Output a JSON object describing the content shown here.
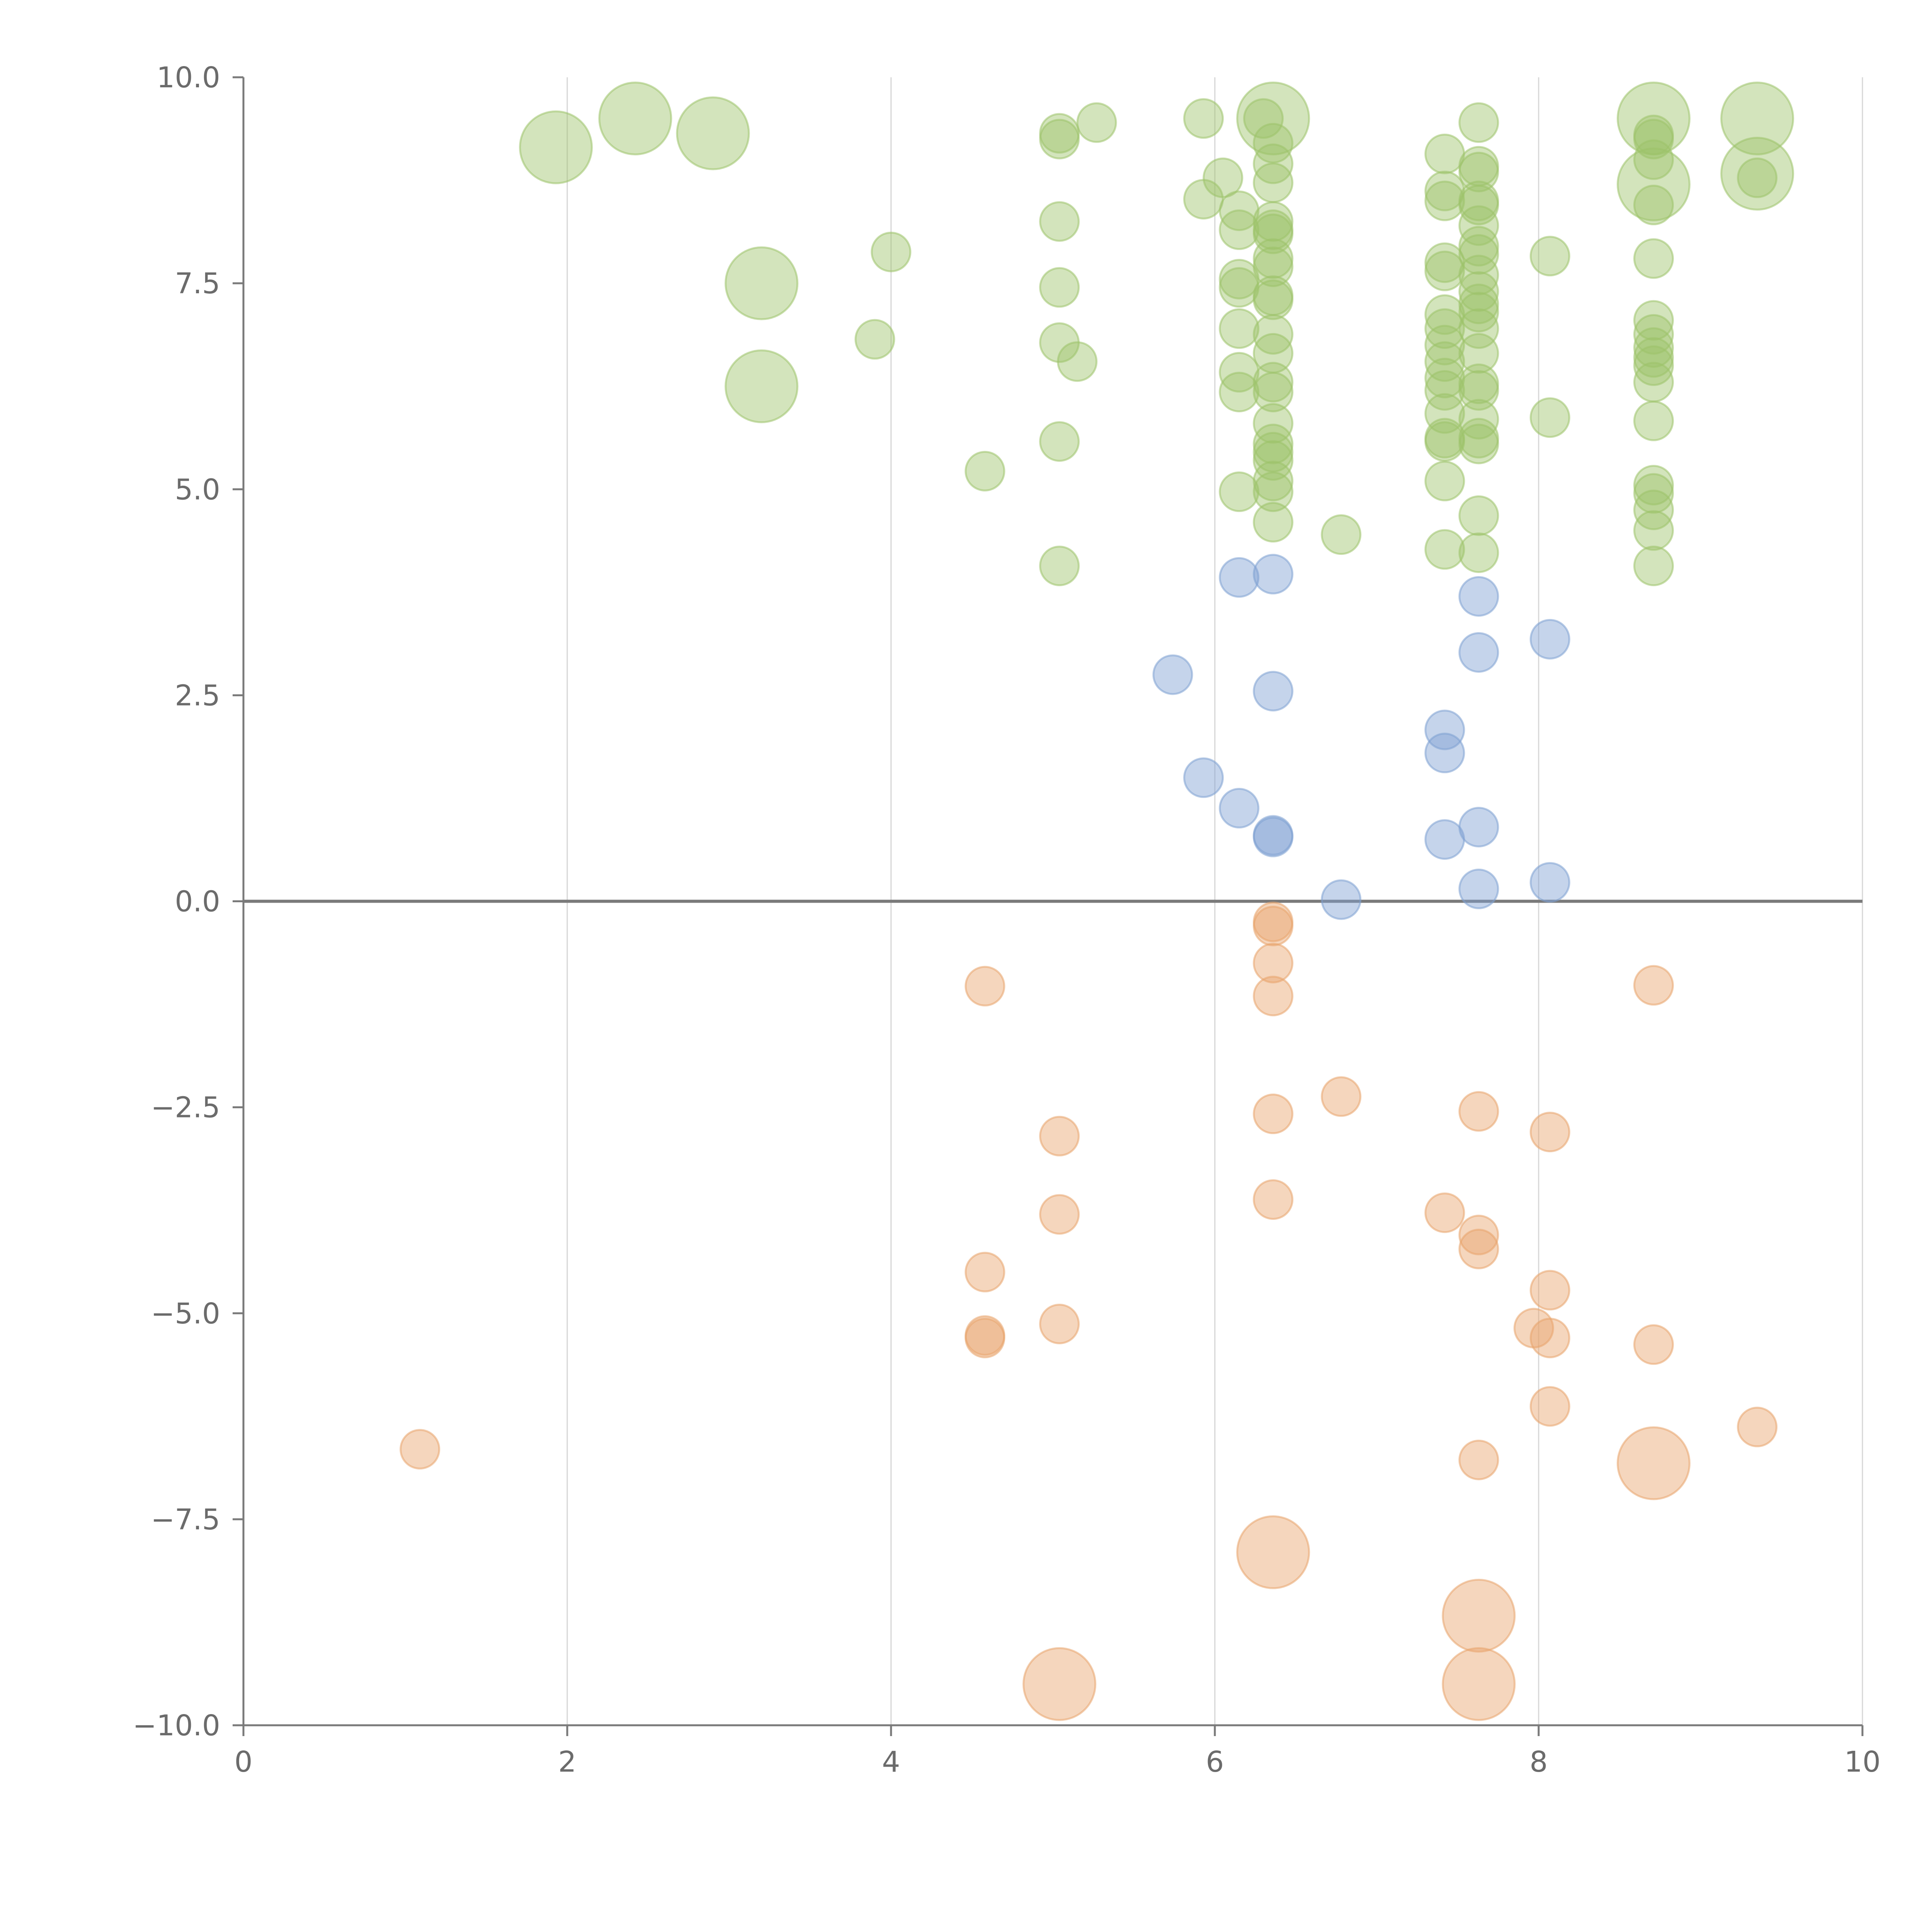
{
  "chart_data": {
    "type": "scatter",
    "xlim": [
      0,
      10
    ],
    "ylim": [
      -10,
      10
    ],
    "x_ticks": [
      "0",
      "2",
      "4",
      "6",
      "8",
      "10"
    ],
    "y_ticks": [
      "10.0",
      "7.5",
      "5.0",
      "2.5",
      "0.0",
      "−2.5",
      "−5.0",
      "−7.5",
      "−10.0"
    ],
    "grid": "vertical",
    "zero_line": true,
    "colors": {
      "green": "#9dc36a",
      "blue": "#7ea0d2",
      "orange": "#e8a46c"
    },
    "series": [
      {
        "color_key": "green",
        "points": [
          {
            "x": 1.93,
            "y": 9.15,
            "size": 2
          },
          {
            "x": 2.42,
            "y": 9.5,
            "size": 2
          },
          {
            "x": 2.9,
            "y": 9.32,
            "size": 2
          },
          {
            "x": 3.2,
            "y": 7.5,
            "size": 2
          },
          {
            "x": 3.2,
            "y": 6.25,
            "size": 2
          },
          {
            "x": 3.9,
            "y": 6.82,
            "size": 1
          },
          {
            "x": 4.0,
            "y": 7.88,
            "size": 1
          },
          {
            "x": 4.58,
            "y": 5.22,
            "size": 1
          },
          {
            "x": 5.04,
            "y": 9.32,
            "size": 1
          },
          {
            "x": 5.04,
            "y": 9.25,
            "size": 1
          },
          {
            "x": 5.04,
            "y": 8.25,
            "size": 1
          },
          {
            "x": 5.04,
            "y": 7.45,
            "size": 1
          },
          {
            "x": 5.04,
            "y": 6.78,
            "size": 1
          },
          {
            "x": 5.04,
            "y": 5.58,
            "size": 1
          },
          {
            "x": 5.04,
            "y": 4.07,
            "size": 1
          },
          {
            "x": 5.15,
            "y": 6.55,
            "size": 1
          },
          {
            "x": 5.27,
            "y": 9.45,
            "size": 1
          },
          {
            "x": 5.93,
            "y": 9.5,
            "size": 1
          },
          {
            "x": 5.93,
            "y": 8.52,
            "size": 1
          },
          {
            "x": 6.05,
            "y": 8.78,
            "size": 1
          },
          {
            "x": 6.15,
            "y": 8.38,
            "size": 1
          },
          {
            "x": 6.15,
            "y": 8.15,
            "size": 1
          },
          {
            "x": 6.15,
            "y": 7.55,
            "size": 1
          },
          {
            "x": 6.15,
            "y": 7.45,
            "size": 1
          },
          {
            "x": 6.15,
            "y": 6.95,
            "size": 1
          },
          {
            "x": 6.15,
            "y": 6.42,
            "size": 1
          },
          {
            "x": 6.15,
            "y": 6.18,
            "size": 1
          },
          {
            "x": 6.15,
            "y": 4.97,
            "size": 1
          },
          {
            "x": 6.3,
            "y": 9.5,
            "size": 1
          },
          {
            "x": 6.36,
            "y": 9.5,
            "size": 2
          },
          {
            "x": 6.36,
            "y": 9.2,
            "size": 1
          },
          {
            "x": 6.36,
            "y": 8.95,
            "size": 1
          },
          {
            "x": 6.36,
            "y": 8.72,
            "size": 1
          },
          {
            "x": 6.36,
            "y": 8.25,
            "size": 1
          },
          {
            "x": 6.36,
            "y": 8.15,
            "size": 1
          },
          {
            "x": 6.36,
            "y": 8.1,
            "size": 1
          },
          {
            "x": 6.36,
            "y": 7.8,
            "size": 1
          },
          {
            "x": 6.36,
            "y": 7.7,
            "size": 1
          },
          {
            "x": 6.36,
            "y": 7.35,
            "size": 1
          },
          {
            "x": 6.36,
            "y": 7.3,
            "size": 1
          },
          {
            "x": 6.36,
            "y": 6.88,
            "size": 1
          },
          {
            "x": 6.36,
            "y": 6.65,
            "size": 1
          },
          {
            "x": 6.36,
            "y": 6.3,
            "size": 1
          },
          {
            "x": 6.36,
            "y": 6.18,
            "size": 1
          },
          {
            "x": 6.36,
            "y": 5.8,
            "size": 1
          },
          {
            "x": 6.36,
            "y": 5.55,
            "size": 1
          },
          {
            "x": 6.36,
            "y": 5.45,
            "size": 1
          },
          {
            "x": 6.36,
            "y": 5.35,
            "size": 1
          },
          {
            "x": 6.36,
            "y": 5.1,
            "size": 1
          },
          {
            "x": 6.36,
            "y": 4.97,
            "size": 1
          },
          {
            "x": 6.36,
            "y": 4.6,
            "size": 1
          },
          {
            "x": 6.78,
            "y": 4.45,
            "size": 1
          },
          {
            "x": 7.42,
            "y": 9.07,
            "size": 1
          },
          {
            "x": 7.42,
            "y": 8.62,
            "size": 1
          },
          {
            "x": 7.42,
            "y": 8.5,
            "size": 1
          },
          {
            "x": 7.42,
            "y": 7.75,
            "size": 1
          },
          {
            "x": 7.42,
            "y": 7.65,
            "size": 1
          },
          {
            "x": 7.42,
            "y": 7.12,
            "size": 1
          },
          {
            "x": 7.42,
            "y": 6.95,
            "size": 1
          },
          {
            "x": 7.42,
            "y": 6.75,
            "size": 1
          },
          {
            "x": 7.42,
            "y": 6.55,
            "size": 1
          },
          {
            "x": 7.42,
            "y": 6.35,
            "size": 1
          },
          {
            "x": 7.42,
            "y": 6.2,
            "size": 1
          },
          {
            "x": 7.42,
            "y": 5.92,
            "size": 1
          },
          {
            "x": 7.42,
            "y": 5.62,
            "size": 1
          },
          {
            "x": 7.42,
            "y": 5.58,
            "size": 1
          },
          {
            "x": 7.42,
            "y": 5.1,
            "size": 1
          },
          {
            "x": 7.42,
            "y": 4.27,
            "size": 1
          },
          {
            "x": 7.63,
            "y": 9.45,
            "size": 1
          },
          {
            "x": 7.63,
            "y": 8.92,
            "size": 1
          },
          {
            "x": 7.63,
            "y": 8.85,
            "size": 1
          },
          {
            "x": 7.63,
            "y": 8.5,
            "size": 1
          },
          {
            "x": 7.63,
            "y": 8.45,
            "size": 1
          },
          {
            "x": 7.63,
            "y": 8.2,
            "size": 1
          },
          {
            "x": 7.63,
            "y": 7.95,
            "size": 1
          },
          {
            "x": 7.63,
            "y": 7.85,
            "size": 1
          },
          {
            "x": 7.63,
            "y": 7.6,
            "size": 1
          },
          {
            "x": 7.63,
            "y": 7.4,
            "size": 1
          },
          {
            "x": 7.63,
            "y": 7.25,
            "size": 1
          },
          {
            "x": 7.63,
            "y": 7.15,
            "size": 1
          },
          {
            "x": 7.63,
            "y": 6.95,
            "size": 1
          },
          {
            "x": 7.63,
            "y": 6.65,
            "size": 1
          },
          {
            "x": 7.63,
            "y": 6.28,
            "size": 1
          },
          {
            "x": 7.63,
            "y": 6.2,
            "size": 1
          },
          {
            "x": 7.63,
            "y": 5.85,
            "size": 1
          },
          {
            "x": 7.63,
            "y": 5.62,
            "size": 1
          },
          {
            "x": 7.63,
            "y": 5.55,
            "size": 1
          },
          {
            "x": 7.63,
            "y": 4.68,
            "size": 1
          },
          {
            "x": 7.63,
            "y": 4.23,
            "size": 1
          },
          {
            "x": 8.07,
            "y": 7.83,
            "size": 1
          },
          {
            "x": 8.07,
            "y": 5.87,
            "size": 1
          },
          {
            "x": 8.71,
            "y": 9.5,
            "size": 2
          },
          {
            "x": 8.71,
            "y": 9.3,
            "size": 1
          },
          {
            "x": 8.71,
            "y": 9.25,
            "size": 1
          },
          {
            "x": 8.71,
            "y": 9.0,
            "size": 1
          },
          {
            "x": 8.71,
            "y": 8.7,
            "size": 2
          },
          {
            "x": 8.71,
            "y": 8.45,
            "size": 1
          },
          {
            "x": 8.71,
            "y": 7.8,
            "size": 1
          },
          {
            "x": 8.71,
            "y": 7.05,
            "size": 1
          },
          {
            "x": 8.71,
            "y": 6.88,
            "size": 1
          },
          {
            "x": 8.71,
            "y": 6.72,
            "size": 1
          },
          {
            "x": 8.71,
            "y": 6.6,
            "size": 1
          },
          {
            "x": 8.71,
            "y": 6.5,
            "size": 1
          },
          {
            "x": 8.71,
            "y": 6.3,
            "size": 1
          },
          {
            "x": 8.71,
            "y": 5.83,
            "size": 1
          },
          {
            "x": 8.71,
            "y": 5.05,
            "size": 1
          },
          {
            "x": 8.71,
            "y": 4.95,
            "size": 1
          },
          {
            "x": 8.71,
            "y": 4.75,
            "size": 1
          },
          {
            "x": 8.71,
            "y": 4.5,
            "size": 1
          },
          {
            "x": 8.71,
            "y": 4.07,
            "size": 1
          },
          {
            "x": 9.35,
            "y": 9.5,
            "size": 2
          },
          {
            "x": 9.35,
            "y": 8.83,
            "size": 2
          },
          {
            "x": 9.35,
            "y": 8.78,
            "size": 1
          }
        ]
      },
      {
        "color_key": "blue",
        "points": [
          {
            "x": 5.74,
            "y": 2.75,
            "size": 1
          },
          {
            "x": 5.93,
            "y": 1.5,
            "size": 1
          },
          {
            "x": 6.15,
            "y": 3.93,
            "size": 1
          },
          {
            "x": 6.15,
            "y": 1.13,
            "size": 1
          },
          {
            "x": 6.36,
            "y": 3.97,
            "size": 1
          },
          {
            "x": 6.36,
            "y": 2.55,
            "size": 1
          },
          {
            "x": 6.36,
            "y": 0.8,
            "size": 1
          },
          {
            "x": 6.36,
            "y": 0.78,
            "size": 1
          },
          {
            "x": 6.78,
            "y": 0.02,
            "size": 1
          },
          {
            "x": 7.42,
            "y": 2.08,
            "size": 1
          },
          {
            "x": 7.42,
            "y": 1.8,
            "size": 1
          },
          {
            "x": 7.42,
            "y": 0.75,
            "size": 1
          },
          {
            "x": 7.63,
            "y": 3.7,
            "size": 1
          },
          {
            "x": 7.63,
            "y": 3.02,
            "size": 1
          },
          {
            "x": 7.63,
            "y": 0.9,
            "size": 1
          },
          {
            "x": 7.63,
            "y": 0.15,
            "size": 1
          },
          {
            "x": 8.07,
            "y": 3.18,
            "size": 1
          },
          {
            "x": 8.07,
            "y": 0.23,
            "size": 1
          }
        ]
      },
      {
        "color_key": "orange",
        "points": [
          {
            "x": 1.09,
            "y": -6.65,
            "size": 1
          },
          {
            "x": 4.58,
            "y": -1.03,
            "size": 1
          },
          {
            "x": 4.58,
            "y": -4.5,
            "size": 1
          },
          {
            "x": 4.58,
            "y": -5.27,
            "size": 1
          },
          {
            "x": 4.58,
            "y": -5.3,
            "size": 1
          },
          {
            "x": 5.04,
            "y": -2.85,
            "size": 1
          },
          {
            "x": 5.04,
            "y": -3.8,
            "size": 1
          },
          {
            "x": 5.04,
            "y": -5.13,
            "size": 1
          },
          {
            "x": 5.04,
            "y": -9.5,
            "size": 2
          },
          {
            "x": 6.36,
            "y": -0.25,
            "size": 1
          },
          {
            "x": 6.36,
            "y": -0.3,
            "size": 1
          },
          {
            "x": 6.36,
            "y": -0.75,
            "size": 1
          },
          {
            "x": 6.36,
            "y": -1.15,
            "size": 1
          },
          {
            "x": 6.36,
            "y": -2.58,
            "size": 1
          },
          {
            "x": 6.36,
            "y": -3.62,
            "size": 1
          },
          {
            "x": 6.36,
            "y": -7.9,
            "size": 2
          },
          {
            "x": 6.78,
            "y": -2.37,
            "size": 1
          },
          {
            "x": 7.42,
            "y": -3.78,
            "size": 1
          },
          {
            "x": 7.63,
            "y": -2.55,
            "size": 1
          },
          {
            "x": 7.63,
            "y": -4.05,
            "size": 1
          },
          {
            "x": 7.63,
            "y": -4.22,
            "size": 1
          },
          {
            "x": 7.63,
            "y": -6.78,
            "size": 1
          },
          {
            "x": 7.63,
            "y": -8.67,
            "size": 2
          },
          {
            "x": 7.63,
            "y": -9.5,
            "size": 2
          },
          {
            "x": 7.97,
            "y": -5.18,
            "size": 1
          },
          {
            "x": 8.07,
            "y": -2.8,
            "size": 1
          },
          {
            "x": 8.07,
            "y": -4.72,
            "size": 1
          },
          {
            "x": 8.07,
            "y": -5.3,
            "size": 1
          },
          {
            "x": 8.07,
            "y": -6.13,
            "size": 1
          },
          {
            "x": 8.71,
            "y": -1.02,
            "size": 1
          },
          {
            "x": 8.71,
            "y": -5.38,
            "size": 1
          },
          {
            "x": 8.71,
            "y": -6.82,
            "size": 2
          },
          {
            "x": 9.35,
            "y": -6.38,
            "size": 1
          }
        ]
      }
    ]
  }
}
